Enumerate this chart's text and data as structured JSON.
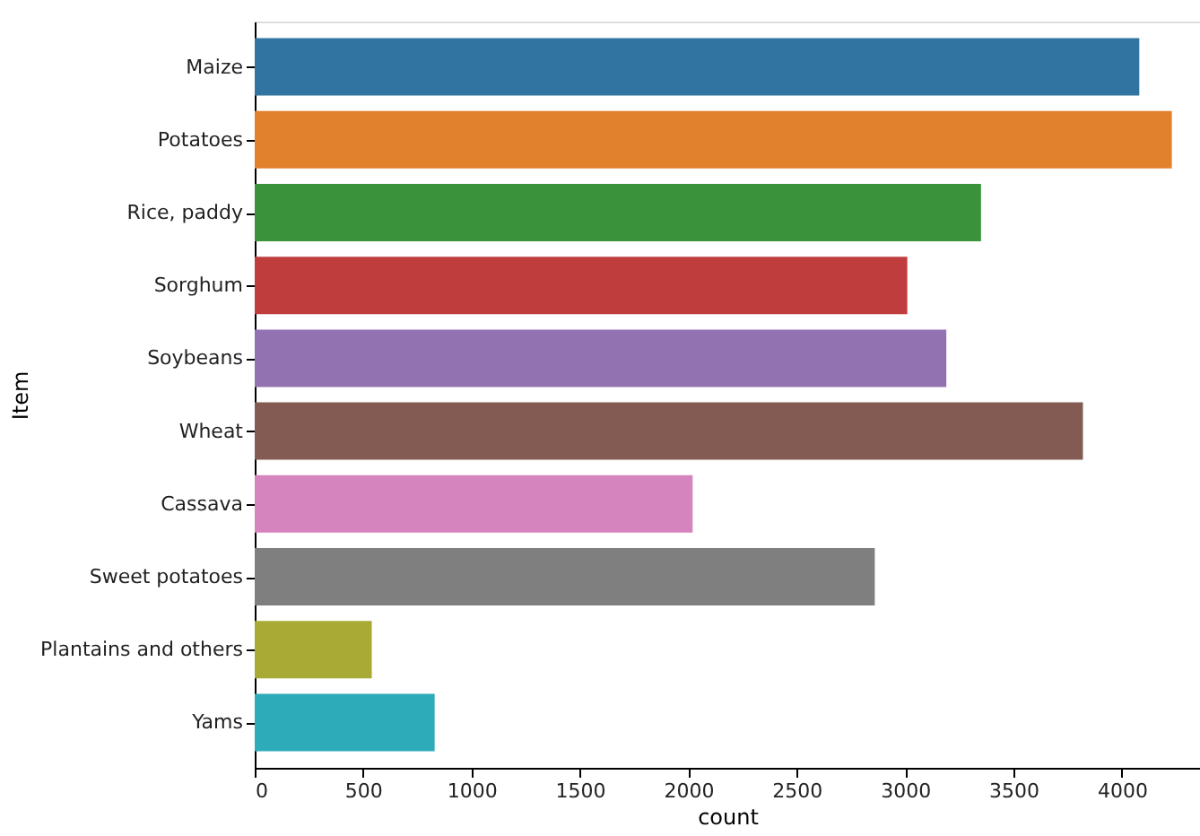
{
  "chart_data": {
    "type": "bar",
    "orientation": "horizontal",
    "xlabel": "count",
    "ylabel": "Item",
    "categories": [
      "Maize",
      "Potatoes",
      "Rice, paddy",
      "Sorghum",
      "Soybeans",
      "Wheat",
      "Cassava",
      "Sweet potatoes",
      "Plantains and others",
      "Yams"
    ],
    "values": [
      4080,
      4230,
      3350,
      3010,
      3190,
      3820,
      2020,
      2860,
      540,
      830
    ],
    "colors": [
      "#3274a1",
      "#e1812c",
      "#3a923a",
      "#c03d3e",
      "#9372b2",
      "#845b53",
      "#d684bd",
      "#7f7f7f",
      "#a9aa35",
      "#2eabb8"
    ],
    "xlim": [
      0,
      4360
    ],
    "xticks": [
      0,
      500,
      1000,
      1500,
      2000,
      2500,
      3000,
      3500,
      4000
    ],
    "grid": false
  }
}
